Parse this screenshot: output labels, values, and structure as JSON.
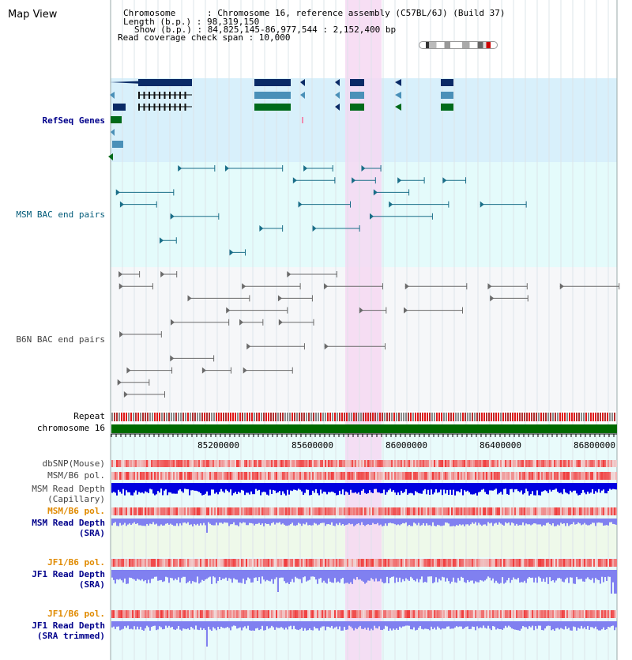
{
  "title": "Map View",
  "info": {
    "chromosome": "Chromosome      : Chromosome 16, reference assembly (C57BL/6J) (Build 37)",
    "length": "Length (b.p.) : 98,319,150",
    "show": "Show (b.p.) : 84,825,145-86,977,544 : 2,152,400 bp",
    "coverage": "Read coverage check span : 10,000"
  },
  "lanes": {
    "refseq": "RefSeq Genes",
    "msm_bac": "MSM BAC end pairs",
    "b6n_bac": "B6N BAC end pairs",
    "repeat": "Repeat",
    "chromosome": "chromosome 16",
    "dbsnp": "dbSNP(Mouse)",
    "msm_b6_pol_1": "MSM/B6 pol.",
    "msm_depth_cap_1": "MSM Read Depth",
    "msm_depth_cap_2": "(Capillary)",
    "msm_b6_pol_2": "MSM/B6 pol.",
    "msm_depth_sra_1": "MSM Read Depth",
    "msm_depth_sra_2": "(SRA)",
    "jf1_b6_pol_1": "JF1/B6 pol.",
    "jf1_depth_sra_1": "JF1 Read Depth",
    "jf1_depth_sra_2": "(SRA)",
    "jf1_b6_pol_2": "JF1/B6 pol.",
    "jf1_depth_trim_1": "JF1 Read Depth",
    "jf1_depth_trim_2": "(SRA trimmed)"
  },
  "axis": {
    "ticks": [
      "85200000",
      "85600000",
      "86000000",
      "86400000",
      "86800000"
    ]
  },
  "colors": {
    "highlight": "#f8d8f4",
    "refseq_bg": "#d8f0fb",
    "msm_bg": "#e4fbfb",
    "b6n_bg": "#f4f6f8",
    "gene_dark": "#0a2a66",
    "gene_mid": "#4a90b8",
    "gene_green": "#006a1a",
    "chrom_green": "#006a00",
    "depth_blue": "#0000e0",
    "depth_light": "#8080f0",
    "pol_red": "#f04040"
  }
}
